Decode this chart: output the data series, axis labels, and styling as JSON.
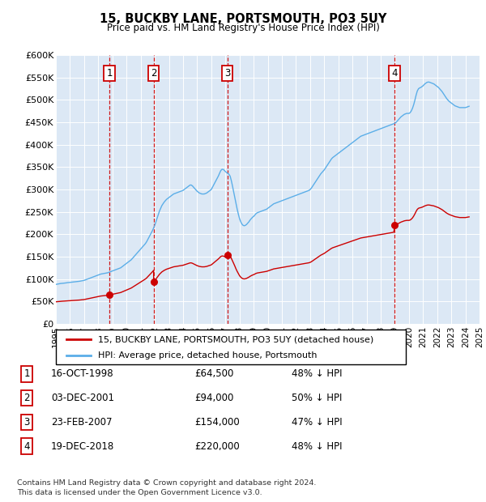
{
  "title": "15, BUCKBY LANE, PORTSMOUTH, PO3 5UY",
  "subtitle": "Price paid vs. HM Land Registry's House Price Index (HPI)",
  "hpi_years": [
    1995.0,
    1995.083,
    1995.167,
    1995.25,
    1995.333,
    1995.417,
    1995.5,
    1995.583,
    1995.667,
    1995.75,
    1995.833,
    1995.917,
    1996.0,
    1996.083,
    1996.167,
    1996.25,
    1996.333,
    1996.417,
    1996.5,
    1996.583,
    1996.667,
    1996.75,
    1996.833,
    1996.917,
    1997.0,
    1997.083,
    1997.167,
    1997.25,
    1997.333,
    1997.417,
    1997.5,
    1997.583,
    1997.667,
    1997.75,
    1997.833,
    1997.917,
    1998.0,
    1998.083,
    1998.167,
    1998.25,
    1998.333,
    1998.417,
    1998.5,
    1998.583,
    1998.667,
    1998.75,
    1998.833,
    1998.917,
    1999.0,
    1999.083,
    1999.167,
    1999.25,
    1999.333,
    1999.417,
    1999.5,
    1999.583,
    1999.667,
    1999.75,
    1999.833,
    1999.917,
    2000.0,
    2000.083,
    2000.167,
    2000.25,
    2000.333,
    2000.417,
    2000.5,
    2000.583,
    2000.667,
    2000.75,
    2000.833,
    2000.917,
    2001.0,
    2001.083,
    2001.167,
    2001.25,
    2001.333,
    2001.417,
    2001.5,
    2001.583,
    2001.667,
    2001.75,
    2001.833,
    2001.917,
    2002.0,
    2002.083,
    2002.167,
    2002.25,
    2002.333,
    2002.417,
    2002.5,
    2002.583,
    2002.667,
    2002.75,
    2002.833,
    2002.917,
    2003.0,
    2003.083,
    2003.167,
    2003.25,
    2003.333,
    2003.417,
    2003.5,
    2003.583,
    2003.667,
    2003.75,
    2003.833,
    2003.917,
    2004.0,
    2004.083,
    2004.167,
    2004.25,
    2004.333,
    2004.417,
    2004.5,
    2004.583,
    2004.667,
    2004.75,
    2004.833,
    2004.917,
    2005.0,
    2005.083,
    2005.167,
    2005.25,
    2005.333,
    2005.417,
    2005.5,
    2005.583,
    2005.667,
    2005.75,
    2005.833,
    2005.917,
    2006.0,
    2006.083,
    2006.167,
    2006.25,
    2006.333,
    2006.417,
    2006.5,
    2006.583,
    2006.667,
    2006.75,
    2006.833,
    2006.917,
    2007.0,
    2007.083,
    2007.167,
    2007.25,
    2007.333,
    2007.417,
    2007.5,
    2007.583,
    2007.667,
    2007.75,
    2007.833,
    2007.917,
    2008.0,
    2008.083,
    2008.167,
    2008.25,
    2008.333,
    2008.417,
    2008.5,
    2008.583,
    2008.667,
    2008.75,
    2008.833,
    2008.917,
    2009.0,
    2009.083,
    2009.167,
    2009.25,
    2009.333,
    2009.417,
    2009.5,
    2009.583,
    2009.667,
    2009.75,
    2009.833,
    2009.917,
    2010.0,
    2010.083,
    2010.167,
    2010.25,
    2010.333,
    2010.417,
    2010.5,
    2010.583,
    2010.667,
    2010.75,
    2010.833,
    2010.917,
    2011.0,
    2011.083,
    2011.167,
    2011.25,
    2011.333,
    2011.417,
    2011.5,
    2011.583,
    2011.667,
    2011.75,
    2011.833,
    2011.917,
    2012.0,
    2012.083,
    2012.167,
    2012.25,
    2012.333,
    2012.417,
    2012.5,
    2012.583,
    2012.667,
    2012.75,
    2012.833,
    2012.917,
    2013.0,
    2013.083,
    2013.167,
    2013.25,
    2013.333,
    2013.417,
    2013.5,
    2013.583,
    2013.667,
    2013.75,
    2013.833,
    2013.917,
    2014.0,
    2014.083,
    2014.167,
    2014.25,
    2014.333,
    2014.417,
    2014.5,
    2014.583,
    2014.667,
    2014.75,
    2014.833,
    2014.917,
    2015.0,
    2015.083,
    2015.167,
    2015.25,
    2015.333,
    2015.417,
    2015.5,
    2015.583,
    2015.667,
    2015.75,
    2015.833,
    2015.917,
    2016.0,
    2016.083,
    2016.167,
    2016.25,
    2016.333,
    2016.417,
    2016.5,
    2016.583,
    2016.667,
    2016.75,
    2016.833,
    2016.917,
    2017.0,
    2017.083,
    2017.167,
    2017.25,
    2017.333,
    2017.417,
    2017.5,
    2017.583,
    2017.667,
    2017.75,
    2017.833,
    2017.917,
    2018.0,
    2018.083,
    2018.167,
    2018.25,
    2018.333,
    2018.417,
    2018.5,
    2018.583,
    2018.667,
    2018.75,
    2018.833,
    2018.917,
    2019.0,
    2019.083,
    2019.167,
    2019.25,
    2019.333,
    2019.417,
    2019.5,
    2019.583,
    2019.667,
    2019.75,
    2019.833,
    2019.917,
    2020.0,
    2020.083,
    2020.167,
    2020.25,
    2020.333,
    2020.417,
    2020.5,
    2020.583,
    2020.667,
    2020.75,
    2020.833,
    2020.917,
    2021.0,
    2021.083,
    2021.167,
    2021.25,
    2021.333,
    2021.417,
    2021.5,
    2021.583,
    2021.667,
    2021.75,
    2021.833,
    2021.917,
    2022.0,
    2022.083,
    2022.167,
    2022.25,
    2022.333,
    2022.417,
    2022.5,
    2022.583,
    2022.667,
    2022.75,
    2022.833,
    2022.917,
    2023.0,
    2023.083,
    2023.167,
    2023.25,
    2023.333,
    2023.417,
    2023.5,
    2023.583,
    2023.667,
    2023.75,
    2023.833,
    2023.917,
    2024.0,
    2024.083,
    2024.167,
    2024.25
  ],
  "hpi_values": [
    88000,
    88500,
    89000,
    89500,
    90000,
    90200,
    90500,
    90800,
    91000,
    91500,
    92000,
    92200,
    92500,
    92800,
    93000,
    93500,
    93800,
    94000,
    94200,
    94500,
    95000,
    95500,
    96000,
    96500,
    97000,
    98000,
    99000,
    100000,
    101000,
    102000,
    103000,
    104000,
    105000,
    106000,
    107000,
    108000,
    109000,
    110000,
    111000,
    111500,
    112000,
    112500,
    113000,
    113500,
    114000,
    115000,
    116000,
    117000,
    118000,
    119000,
    120000,
    121000,
    122000,
    123000,
    124000,
    125000,
    127000,
    129000,
    131000,
    133000,
    135000,
    137000,
    139000,
    141000,
    143000,
    146000,
    149000,
    152000,
    155000,
    158000,
    161000,
    164000,
    167000,
    170000,
    173000,
    176000,
    179000,
    183000,
    188000,
    193000,
    198000,
    203000,
    208000,
    214000,
    220000,
    228000,
    236000,
    244000,
    252000,
    258000,
    264000,
    268000,
    272000,
    275000,
    278000,
    280000,
    282000,
    284000,
    286000,
    288000,
    290000,
    291000,
    292000,
    293000,
    294000,
    295000,
    296000,
    297000,
    298000,
    300000,
    302000,
    304000,
    306000,
    308000,
    310000,
    310000,
    308000,
    305000,
    302000,
    299000,
    296000,
    294000,
    292000,
    291000,
    290000,
    290000,
    290000,
    291000,
    292000,
    294000,
    296000,
    298000,
    300000,
    305000,
    310000,
    315000,
    320000,
    325000,
    330000,
    336000,
    342000,
    345000,
    345000,
    343000,
    340000,
    338000,
    336000,
    334000,
    330000,
    320000,
    308000,
    295000,
    282000,
    268000,
    256000,
    245000,
    235000,
    228000,
    223000,
    220000,
    219000,
    220000,
    222000,
    225000,
    228000,
    232000,
    235000,
    238000,
    240000,
    243000,
    246000,
    248000,
    249000,
    250000,
    251000,
    252000,
    253000,
    254000,
    255000,
    256000,
    258000,
    260000,
    262000,
    264000,
    266000,
    268000,
    269000,
    270000,
    271000,
    272000,
    273000,
    274000,
    275000,
    276000,
    277000,
    278000,
    279000,
    280000,
    281000,
    282000,
    283000,
    284000,
    285000,
    286000,
    287000,
    288000,
    289000,
    290000,
    291000,
    292000,
    293000,
    294000,
    295000,
    296000,
    297000,
    298000,
    300000,
    303000,
    307000,
    311000,
    315000,
    319000,
    323000,
    327000,
    331000,
    335000,
    338000,
    341000,
    344000,
    348000,
    352000,
    356000,
    360000,
    364000,
    368000,
    371000,
    373000,
    375000,
    377000,
    379000,
    381000,
    383000,
    385000,
    387000,
    389000,
    391000,
    393000,
    395000,
    397000,
    399000,
    401000,
    403000,
    405000,
    407000,
    409000,
    411000,
    413000,
    415000,
    417000,
    419000,
    420000,
    421000,
    422000,
    423000,
    424000,
    425000,
    426000,
    427000,
    428000,
    429000,
    430000,
    431000,
    432000,
    433000,
    434000,
    435000,
    436000,
    437000,
    438000,
    439000,
    440000,
    441000,
    442000,
    443000,
    444000,
    445000,
    446000,
    447000,
    448000,
    450000,
    453000,
    456000,
    459000,
    462000,
    464000,
    466000,
    468000,
    469000,
    470000,
    470000,
    470000,
    472000,
    476000,
    482000,
    490000,
    500000,
    511000,
    520000,
    525000,
    527000,
    528000,
    530000,
    532000,
    535000,
    537000,
    539000,
    540000,
    540000,
    539000,
    538000,
    537000,
    536000,
    534000,
    532000,
    530000,
    528000,
    525000,
    522000,
    519000,
    515000,
    511000,
    507000,
    503000,
    500000,
    497000,
    495000,
    493000,
    491000,
    489000,
    487000,
    486000,
    485000,
    484000,
    483000,
    483000,
    483000,
    483000,
    483000,
    483000,
    484000,
    485000,
    486000
  ],
  "sale_years": [
    1998.79,
    2001.92,
    2007.14,
    2018.97
  ],
  "sale_prices": [
    64500,
    94000,
    154000,
    220000
  ],
  "sale_labels": [
    "1",
    "2",
    "3",
    "4"
  ],
  "sale_dates": [
    "16-OCT-1998",
    "03-DEC-2001",
    "23-FEB-2007",
    "19-DEC-2018"
  ],
  "sale_pcts": [
    "48% ↓ HPI",
    "50% ↓ HPI",
    "47% ↓ HPI",
    "48% ↓ HPI"
  ],
  "hpi_color": "#5baee8",
  "sale_color": "#cc0000",
  "vline_color": "#cc0000",
  "box_color": "#cc0000",
  "bg_color": "#dce8f5",
  "legend_line1": "15, BUCKBY LANE, PORTSMOUTH, PO3 5UY (detached house)",
  "legend_line2": "HPI: Average price, detached house, Portsmouth",
  "footer": "Contains HM Land Registry data © Crown copyright and database right 2024.\nThis data is licensed under the Open Government Licence v3.0.",
  "xlim": [
    1995,
    2025
  ],
  "ylim": [
    0,
    600000
  ],
  "yticks": [
    0,
    50000,
    100000,
    150000,
    200000,
    250000,
    300000,
    350000,
    400000,
    450000,
    500000,
    550000,
    600000
  ],
  "xticks": [
    1995,
    1996,
    1997,
    1998,
    1999,
    2000,
    2001,
    2002,
    2003,
    2004,
    2005,
    2006,
    2007,
    2008,
    2009,
    2010,
    2011,
    2012,
    2013,
    2014,
    2015,
    2016,
    2017,
    2018,
    2019,
    2020,
    2021,
    2022,
    2023,
    2024,
    2025
  ]
}
